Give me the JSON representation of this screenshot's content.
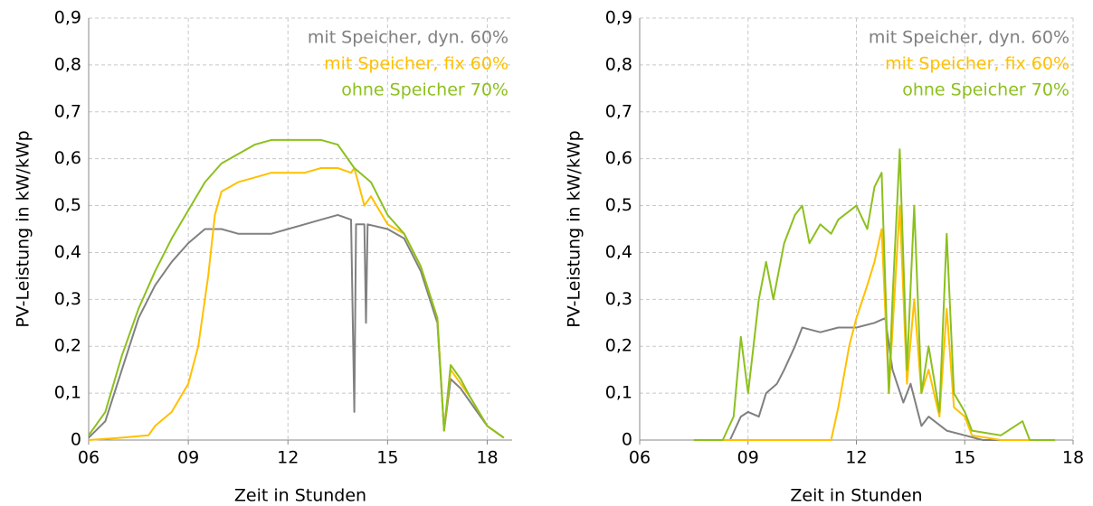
{
  "chart_data": [
    {
      "type": "line",
      "xlabel": "Zeit in Stunden",
      "ylabel": "PV-Leistung in kW/kWp",
      "xlim": [
        6,
        18.75
      ],
      "ylim": [
        0,
        0.9
      ],
      "xticks": [
        {
          "value": 6,
          "label": "06"
        },
        {
          "value": 9,
          "label": "09"
        },
        12,
        15,
        18
      ],
      "yticks": [
        0,
        {
          "value": 0.1,
          "label": "0,1"
        },
        {
          "value": 0.2,
          "label": "0,2"
        },
        {
          "value": 0.3,
          "label": "0,3"
        },
        {
          "value": 0.4,
          "label": "0,4"
        },
        {
          "value": 0.5,
          "label": "0,5"
        },
        {
          "value": 0.6,
          "label": "0,6"
        },
        {
          "value": 0.7,
          "label": "0,7"
        },
        {
          "value": 0.8,
          "label": "0,8"
        },
        {
          "value": 0.9,
          "label": "0,9"
        }
      ],
      "grid": true,
      "legend": "upper right",
      "series": [
        {
          "name": "mit Speicher, dyn. 60%",
          "color": "#808080",
          "x": [
            6,
            6.5,
            7,
            7.5,
            8,
            8.5,
            9,
            9.5,
            10,
            10.5,
            11,
            11.5,
            12,
            12.5,
            13,
            13.5,
            13.9,
            14.0,
            14.05,
            14.3,
            14.35,
            14.4,
            15,
            15.5,
            16,
            16.5,
            16.7,
            16.9,
            17.2,
            17.5,
            18,
            18.5
          ],
          "values": [
            0.005,
            0.04,
            0.15,
            0.26,
            0.33,
            0.38,
            0.42,
            0.45,
            0.45,
            0.44,
            0.44,
            0.44,
            0.45,
            0.46,
            0.47,
            0.48,
            0.47,
            0.06,
            0.46,
            0.46,
            0.25,
            0.46,
            0.45,
            0.43,
            0.36,
            0.25,
            0.02,
            0.13,
            0.11,
            0.08,
            0.03,
            0.005
          ]
        },
        {
          "name": "mit Speicher, fix 60%",
          "color": "#ffc000",
          "x": [
            6,
            7,
            7.8,
            8,
            8.5,
            9,
            9.3,
            9.6,
            9.8,
            10,
            10.5,
            11,
            11.5,
            12,
            12.5,
            13,
            13.5,
            13.9,
            14,
            14.3,
            14.5,
            15,
            15.5,
            16,
            16.5,
            16.7,
            16.9,
            17.2,
            17.5,
            18,
            18.5
          ],
          "values": [
            0,
            0.005,
            0.01,
            0.03,
            0.06,
            0.12,
            0.2,
            0.35,
            0.48,
            0.53,
            0.55,
            0.56,
            0.57,
            0.57,
            0.57,
            0.58,
            0.58,
            0.57,
            0.58,
            0.5,
            0.52,
            0.46,
            0.44,
            0.37,
            0.26,
            0.02,
            0.15,
            0.12,
            0.09,
            0.03,
            0.005
          ]
        },
        {
          "name": "ohne Speicher 70%",
          "color": "#8cc01e",
          "x": [
            6,
            6.5,
            7,
            7.5,
            8,
            8.5,
            9,
            9.5,
            10,
            10.5,
            11,
            11.5,
            12,
            12.5,
            13,
            13.5,
            14,
            14.5,
            15,
            15.5,
            16,
            16.5,
            16.7,
            16.9,
            17.2,
            17.5,
            18,
            18.5
          ],
          "values": [
            0.01,
            0.06,
            0.18,
            0.28,
            0.36,
            0.43,
            0.49,
            0.55,
            0.59,
            0.61,
            0.63,
            0.64,
            0.64,
            0.64,
            0.64,
            0.63,
            0.58,
            0.55,
            0.48,
            0.44,
            0.37,
            0.26,
            0.02,
            0.16,
            0.13,
            0.09,
            0.03,
            0.005
          ]
        }
      ]
    },
    {
      "type": "line",
      "xlabel": "Zeit in Stunden",
      "ylabel": "PV-Leistung in kW/kWp",
      "xlim": [
        6,
        18
      ],
      "ylim": [
        0,
        0.9
      ],
      "xticks": [
        {
          "value": 6,
          "label": "06"
        },
        {
          "value": 9,
          "label": "09"
        },
        12,
        15,
        18
      ],
      "yticks": [
        0,
        {
          "value": 0.1,
          "label": "0,1"
        },
        {
          "value": 0.2,
          "label": "0,2"
        },
        {
          "value": 0.3,
          "label": "0,3"
        },
        {
          "value": 0.4,
          "label": "0,4"
        },
        {
          "value": 0.5,
          "label": "0,5"
        },
        {
          "value": 0.6,
          "label": "0,6"
        },
        {
          "value": 0.7,
          "label": "0,7"
        },
        {
          "value": 0.8,
          "label": "0,8"
        },
        {
          "value": 0.9,
          "label": "0,9"
        }
      ],
      "grid": true,
      "legend": "upper right",
      "series": [
        {
          "name": "mit Speicher, dyn. 60%",
          "color": "#808080",
          "x": [
            7.5,
            8.5,
            8.8,
            9,
            9.3,
            9.5,
            9.8,
            10,
            10.3,
            10.5,
            11,
            11.5,
            12,
            12.5,
            12.8,
            13,
            13.3,
            13.5,
            13.8,
            14,
            14.5,
            15,
            15.5,
            17.5
          ],
          "values": [
            0,
            0,
            0.05,
            0.06,
            0.05,
            0.1,
            0.12,
            0.15,
            0.2,
            0.24,
            0.23,
            0.24,
            0.24,
            0.25,
            0.26,
            0.15,
            0.08,
            0.12,
            0.03,
            0.05,
            0.02,
            0.01,
            0,
            0
          ]
        },
        {
          "name": "mit Speicher, fix 60%",
          "color": "#ffc000",
          "x": [
            7.5,
            11.3,
            11.5,
            11.8,
            12,
            12.3,
            12.5,
            12.7,
            12.9,
            13.2,
            13.4,
            13.6,
            13.8,
            14,
            14.3,
            14.5,
            14.7,
            15,
            15.2,
            16,
            17.5
          ],
          "values": [
            0,
            0,
            0.07,
            0.2,
            0.26,
            0.33,
            0.38,
            0.45,
            0.1,
            0.5,
            0.12,
            0.3,
            0.1,
            0.15,
            0.05,
            0.28,
            0.07,
            0.05,
            0.01,
            0,
            0
          ]
        },
        {
          "name": "ohne Speicher 70%",
          "color": "#8cc01e",
          "x": [
            7.5,
            8.3,
            8.6,
            8.8,
            9,
            9.3,
            9.5,
            9.7,
            10,
            10.3,
            10.5,
            10.7,
            11,
            11.3,
            11.5,
            12,
            12.3,
            12.5,
            12.7,
            12.9,
            13,
            13.2,
            13.4,
            13.6,
            13.8,
            14,
            14.3,
            14.5,
            14.7,
            15,
            15.2,
            16,
            16.6,
            16.8,
            17.5
          ],
          "values": [
            0,
            0,
            0.05,
            0.22,
            0.1,
            0.3,
            0.38,
            0.3,
            0.42,
            0.48,
            0.5,
            0.42,
            0.46,
            0.44,
            0.47,
            0.5,
            0.45,
            0.54,
            0.57,
            0.1,
            0.3,
            0.62,
            0.15,
            0.5,
            0.1,
            0.2,
            0.06,
            0.44,
            0.1,
            0.06,
            0.02,
            0.01,
            0.04,
            0,
            0
          ]
        }
      ]
    }
  ]
}
